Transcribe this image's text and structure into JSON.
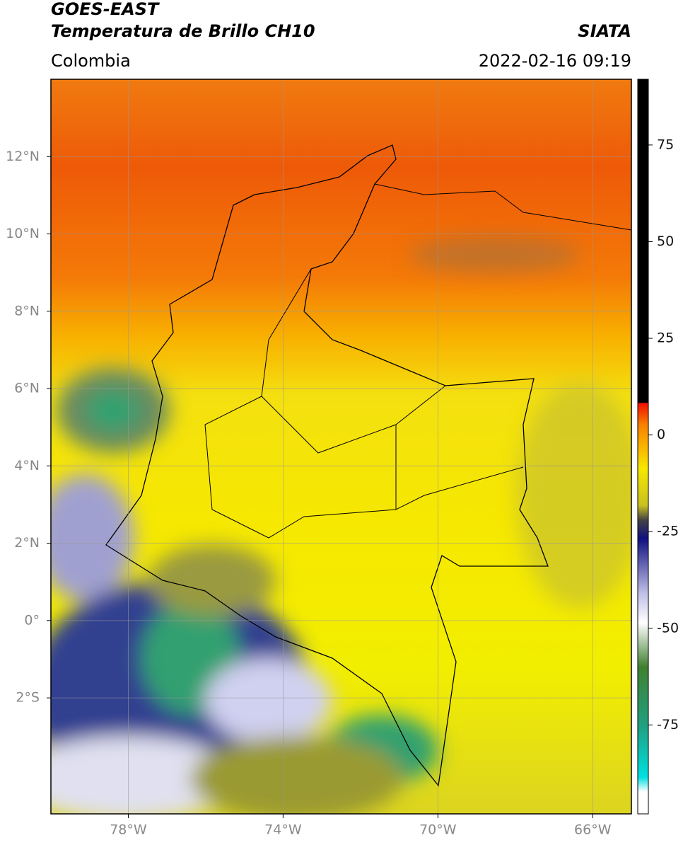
{
  "header": {
    "title_1": "GOES-EAST",
    "title_2": "Temperatura de Brillo CH10",
    "source": "SIATA",
    "region": "Colombia",
    "datetime": "2022-02-16 09:19"
  },
  "map": {
    "xlim": [
      -80,
      -65
    ],
    "ylim": [
      -5,
      14
    ],
    "xticks": [
      {
        "value": -78,
        "label": "78°W"
      },
      {
        "value": -74,
        "label": "74°W"
      },
      {
        "value": -70,
        "label": "70°W"
      },
      {
        "value": -66,
        "label": "66°W"
      }
    ],
    "yticks": [
      {
        "value": 12,
        "label": "12°N"
      },
      {
        "value": 10,
        "label": "10°N"
      },
      {
        "value": 8,
        "label": "8°N"
      },
      {
        "value": 6,
        "label": "6°N"
      },
      {
        "value": 4,
        "label": "4°N"
      },
      {
        "value": 2,
        "label": "2°N"
      },
      {
        "value": 0,
        "label": "0°"
      },
      {
        "value": -2,
        "label": "2°S"
      }
    ],
    "grid": true
  },
  "colorbar": {
    "clim": [
      -98,
      92
    ],
    "ticks": [
      75,
      50,
      25,
      0,
      -25,
      -50,
      -75
    ]
  }
}
